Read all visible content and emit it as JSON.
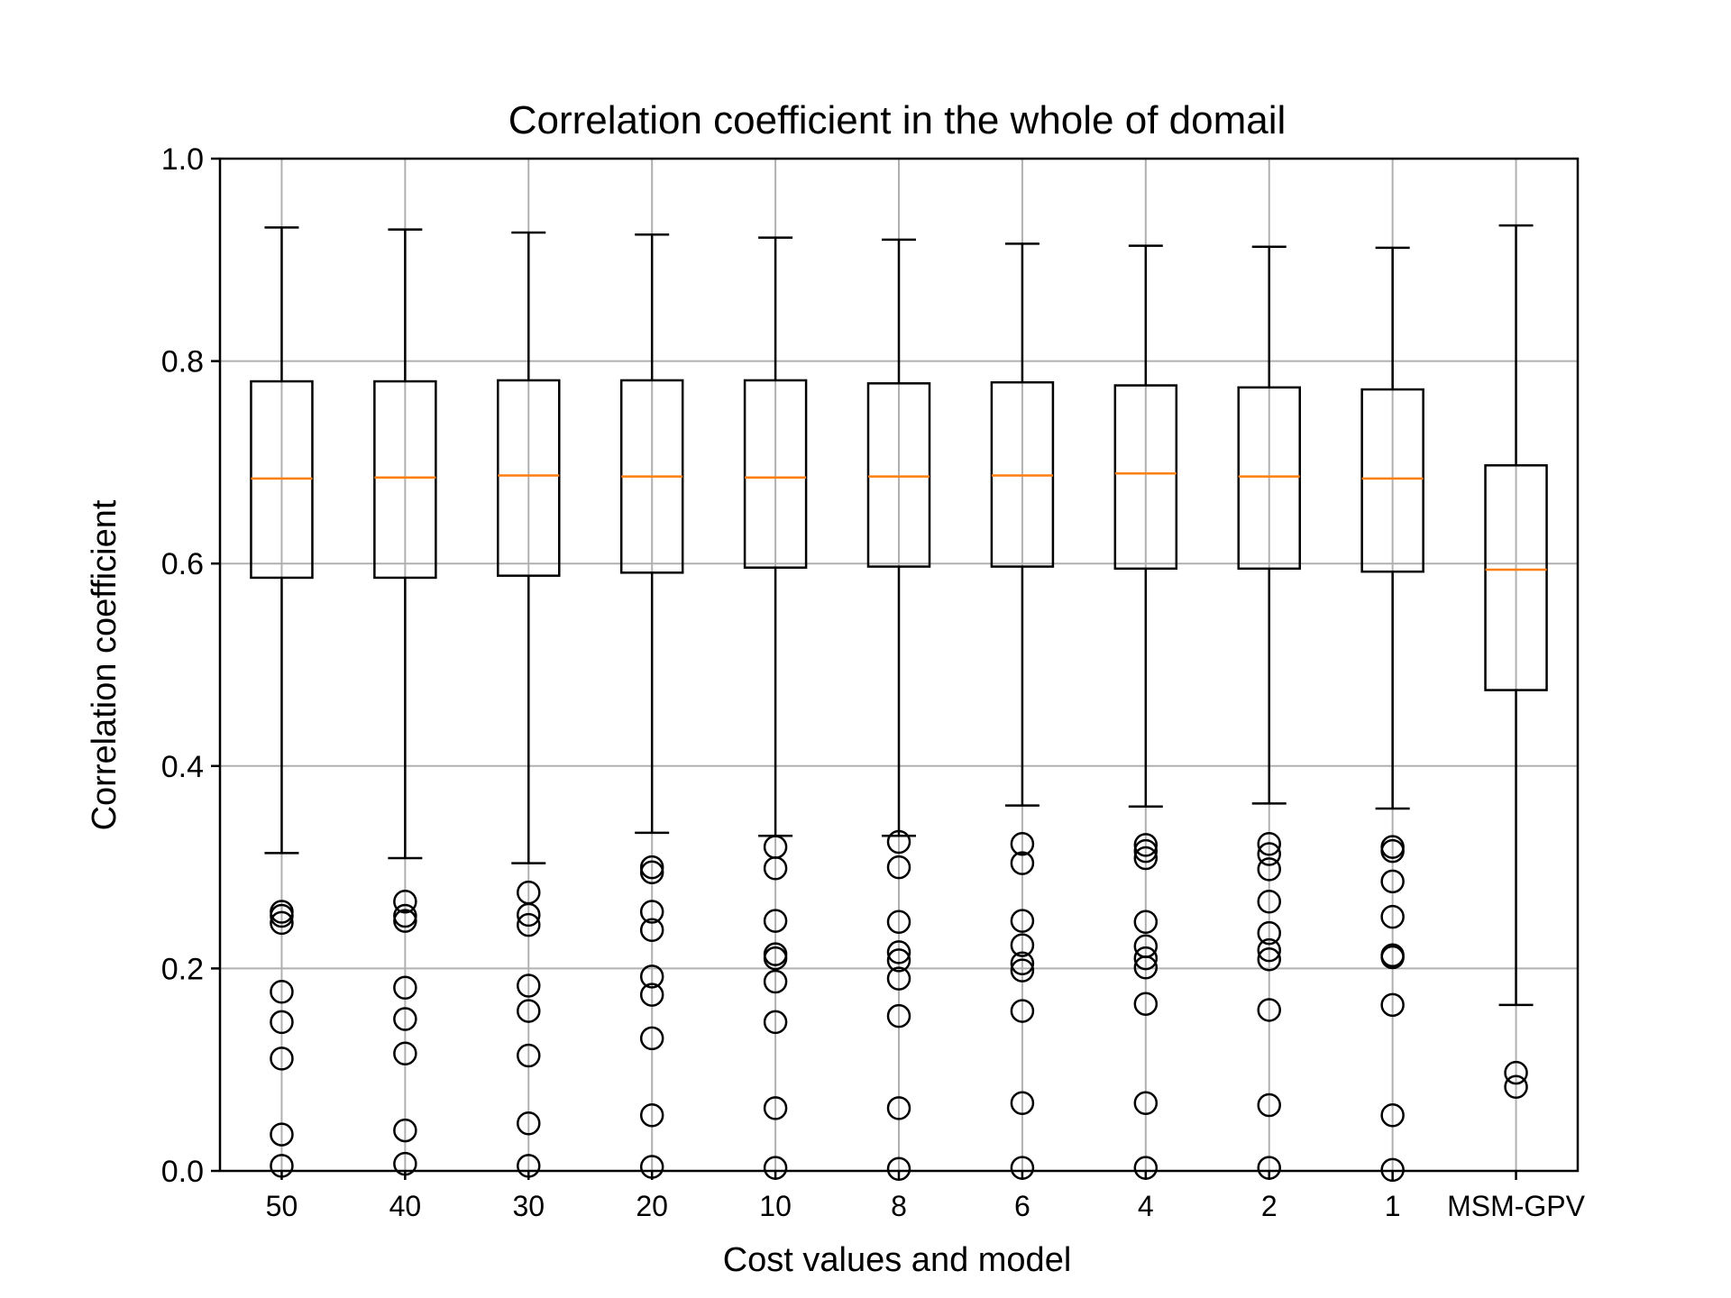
{
  "chart_data": {
    "type": "boxplot",
    "title": "Correlation coefficient in the whole of domail",
    "xlabel": "Cost values and model",
    "ylabel": "Correlation coefficient",
    "ylim": [
      0.0,
      1.0
    ],
    "yticks": [
      "0.0",
      "0.2",
      "0.4",
      "0.6",
      "0.8",
      "1.0"
    ],
    "grid": true,
    "colors": {
      "box": "#000000",
      "median": "#ff7f0e",
      "grid": "#b0b0b0"
    },
    "categories": [
      "50",
      "40",
      "30",
      "20",
      "10",
      "8",
      "6",
      "4",
      "2",
      "1",
      "MSM-GPV"
    ],
    "boxes": [
      {
        "label": "50",
        "whisker_low": 0.314,
        "q1": 0.586,
        "median": 0.684,
        "q3": 0.78,
        "whisker_high": 0.932,
        "outliers": [
          0.256,
          0.252,
          0.245,
          0.177,
          0.147,
          0.111,
          0.036,
          0.005
        ]
      },
      {
        "label": "40",
        "whisker_low": 0.309,
        "q1": 0.586,
        "median": 0.685,
        "q3": 0.78,
        "whisker_high": 0.93,
        "outliers": [
          0.266,
          0.252,
          0.247,
          0.181,
          0.15,
          0.116,
          0.04,
          0.007
        ]
      },
      {
        "label": "30",
        "whisker_low": 0.304,
        "q1": 0.588,
        "median": 0.687,
        "q3": 0.781,
        "whisker_high": 0.927,
        "outliers": [
          0.275,
          0.253,
          0.243,
          0.183,
          0.158,
          0.114,
          0.047,
          0.005
        ]
      },
      {
        "label": "20",
        "whisker_low": 0.334,
        "q1": 0.591,
        "median": 0.686,
        "q3": 0.781,
        "whisker_high": 0.925,
        "outliers": [
          0.3,
          0.295,
          0.256,
          0.238,
          0.192,
          0.174,
          0.131,
          0.055,
          0.004
        ]
      },
      {
        "label": "10",
        "whisker_low": 0.331,
        "q1": 0.596,
        "median": 0.685,
        "q3": 0.781,
        "whisker_high": 0.922,
        "outliers": [
          0.32,
          0.299,
          0.247,
          0.214,
          0.21,
          0.187,
          0.147,
          0.062,
          0.003
        ]
      },
      {
        "label": "8",
        "whisker_low": 0.331,
        "q1": 0.597,
        "median": 0.686,
        "q3": 0.778,
        "whisker_high": 0.92,
        "outliers": [
          0.325,
          0.3,
          0.246,
          0.216,
          0.208,
          0.19,
          0.153,
          0.062,
          0.002
        ]
      },
      {
        "label": "6",
        "whisker_low": 0.361,
        "q1": 0.597,
        "median": 0.687,
        "q3": 0.779,
        "whisker_high": 0.916,
        "outliers": [
          0.323,
          0.304,
          0.247,
          0.223,
          0.205,
          0.198,
          0.158,
          0.067,
          0.003
        ]
      },
      {
        "label": "4",
        "whisker_low": 0.36,
        "q1": 0.595,
        "median": 0.689,
        "q3": 0.776,
        "whisker_high": 0.914,
        "outliers": [
          0.322,
          0.316,
          0.309,
          0.246,
          0.222,
          0.21,
          0.201,
          0.165,
          0.067,
          0.003
        ]
      },
      {
        "label": "2",
        "whisker_low": 0.363,
        "q1": 0.595,
        "median": 0.686,
        "q3": 0.774,
        "whisker_high": 0.913,
        "outliers": [
          0.323,
          0.313,
          0.298,
          0.266,
          0.235,
          0.218,
          0.209,
          0.159,
          0.065,
          0.003
        ]
      },
      {
        "label": "1",
        "whisker_low": 0.358,
        "q1": 0.592,
        "median": 0.684,
        "q3": 0.772,
        "whisker_high": 0.912,
        "outliers": [
          0.32,
          0.316,
          0.286,
          0.251,
          0.213,
          0.211,
          0.164,
          0.055,
          0.001
        ]
      },
      {
        "label": "MSM-GPV",
        "whisker_low": 0.164,
        "q1": 0.475,
        "median": 0.594,
        "q3": 0.697,
        "whisker_high": 0.934,
        "outliers": [
          0.097,
          0.083
        ]
      }
    ]
  }
}
